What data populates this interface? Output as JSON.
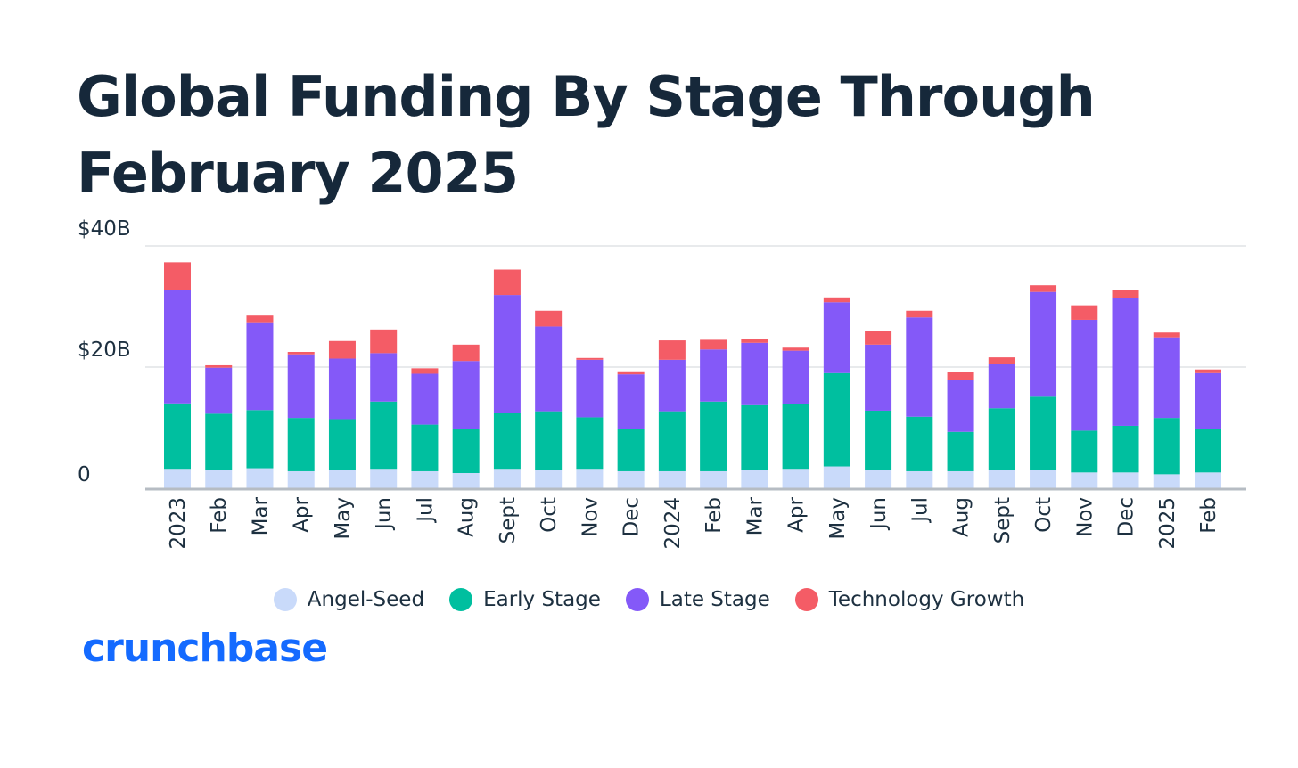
{
  "title": "Global Funding By Stage Through February 2025",
  "brand": {
    "name": "crunchbase",
    "color": "#146aff"
  },
  "colors": {
    "angel_seed": "#c9dafa",
    "early_stage": "#00bf9f",
    "late_stage": "#8459f8",
    "technology_growth": "#f45c66",
    "grid": "#e1e3e6",
    "axis": "#b6bcc3",
    "text": "#1d3040"
  },
  "chart_data": {
    "type": "bar",
    "stacked": true,
    "title": "Global Funding By Stage Through February 2025",
    "xlabel": "",
    "ylabel": "",
    "ylim": [
      0,
      40
    ],
    "yticks": [
      {
        "value": 0,
        "label": "0"
      },
      {
        "value": 20,
        "label": "$20B"
      },
      {
        "value": 40,
        "label": "$40B"
      }
    ],
    "grid": true,
    "legend_position": "bottom-center",
    "categories": [
      "2023",
      "Feb",
      "Mar",
      "Apr",
      "May",
      "Jun",
      "Jul",
      "Aug",
      "Sept",
      "Oct",
      "Nov",
      "Dec",
      "2024",
      "Feb",
      "Mar",
      "Apr",
      "May",
      "Jun",
      "Jul",
      "Aug",
      "Sept",
      "Oct",
      "Nov",
      "Dec",
      "2025",
      "Feb"
    ],
    "series": [
      {
        "name": "Angel-Seed",
        "color": "#c9dafa",
        "values": [
          3.2,
          3.0,
          3.3,
          2.8,
          3.0,
          3.2,
          2.8,
          2.5,
          3.2,
          3.0,
          3.2,
          2.8,
          2.8,
          2.8,
          3.0,
          3.2,
          3.6,
          3.0,
          2.8,
          2.8,
          3.0,
          3.0,
          2.6,
          2.6,
          2.3,
          2.6
        ]
      },
      {
        "name": "Early Stage",
        "color": "#00bf9f",
        "values": [
          10.8,
          9.3,
          9.6,
          8.8,
          8.4,
          11.1,
          7.7,
          7.3,
          9.2,
          9.7,
          8.5,
          7.0,
          9.9,
          11.5,
          10.7,
          10.7,
          15.4,
          9.8,
          9.0,
          6.5,
          10.2,
          12.1,
          6.9,
          7.7,
          9.3,
          7.2
        ]
      },
      {
        "name": "Late Stage",
        "color": "#8459f8",
        "values": [
          18.7,
          7.6,
          14.5,
          10.5,
          10.0,
          8.0,
          8.4,
          11.2,
          19.5,
          14.0,
          9.5,
          9.0,
          8.5,
          8.6,
          10.3,
          8.8,
          11.7,
          10.9,
          16.4,
          8.6,
          7.3,
          17.3,
          18.3,
          21.1,
          13.3,
          9.2
        ]
      },
      {
        "name": "Technology Growth",
        "color": "#f45c66",
        "values": [
          4.6,
          0.4,
          1.1,
          0.4,
          2.9,
          3.9,
          0.9,
          2.7,
          4.2,
          2.6,
          0.3,
          0.5,
          3.2,
          1.6,
          0.6,
          0.5,
          0.8,
          2.3,
          1.1,
          1.3,
          1.1,
          1.1,
          2.4,
          1.3,
          0.8,
          0.6
        ]
      }
    ]
  }
}
